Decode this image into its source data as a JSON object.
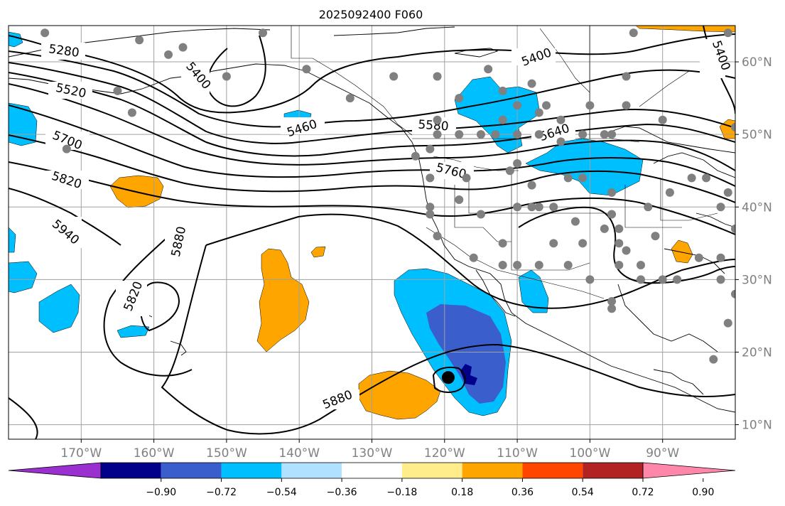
{
  "title": "2025092400 F060",
  "map": {
    "projection": "cylindrical",
    "lon_range": [
      -180,
      -80
    ],
    "lat_range": [
      8,
      65
    ],
    "grid": true,
    "lat_labels": [
      "60°N",
      "50°N",
      "40°N",
      "30°N",
      "20°N",
      "10°N"
    ],
    "lon_labels": [
      "170°W",
      "160°W",
      "150°W",
      "140°W",
      "130°W",
      "120°W",
      "110°W",
      "100°W",
      "90°W"
    ],
    "contour_labels": [
      "5280",
      "5400",
      "5400",
      "5460",
      "5520",
      "5580",
      "5640",
      "5700",
      "5760",
      "5820",
      "5820",
      "5880",
      "5880",
      "5940",
      "5400"
    ],
    "storm_marker": {
      "lon": -119.5,
      "lat": 16.5
    }
  },
  "colorbar": {
    "tick_labels": [
      "−0.90",
      "−0.72",
      "−0.54",
      "−0.36",
      "−0.18",
      "0.18",
      "0.36",
      "0.54",
      "0.72",
      "0.90"
    ],
    "colors": [
      "#9b30d0",
      "#00008b",
      "#3a5fcd",
      "#00bfff",
      "#b0e2ff",
      "#ffffff",
      "#ffec8b",
      "#ffa500",
      "#ff4500",
      "#b22222",
      "#ff88aa"
    ]
  },
  "colors": {
    "negative_fill": "#00bfff",
    "strong_negative_fill": "#3a5fcd",
    "deep_negative_fill": "#00008b",
    "positive_fill": "#ffa500",
    "station_dot": "#808080",
    "contour": "#000000",
    "grid": "#a0a0a0"
  },
  "icons": {
    "station": "station-dot-icon",
    "storm": "storm-center-icon"
  }
}
